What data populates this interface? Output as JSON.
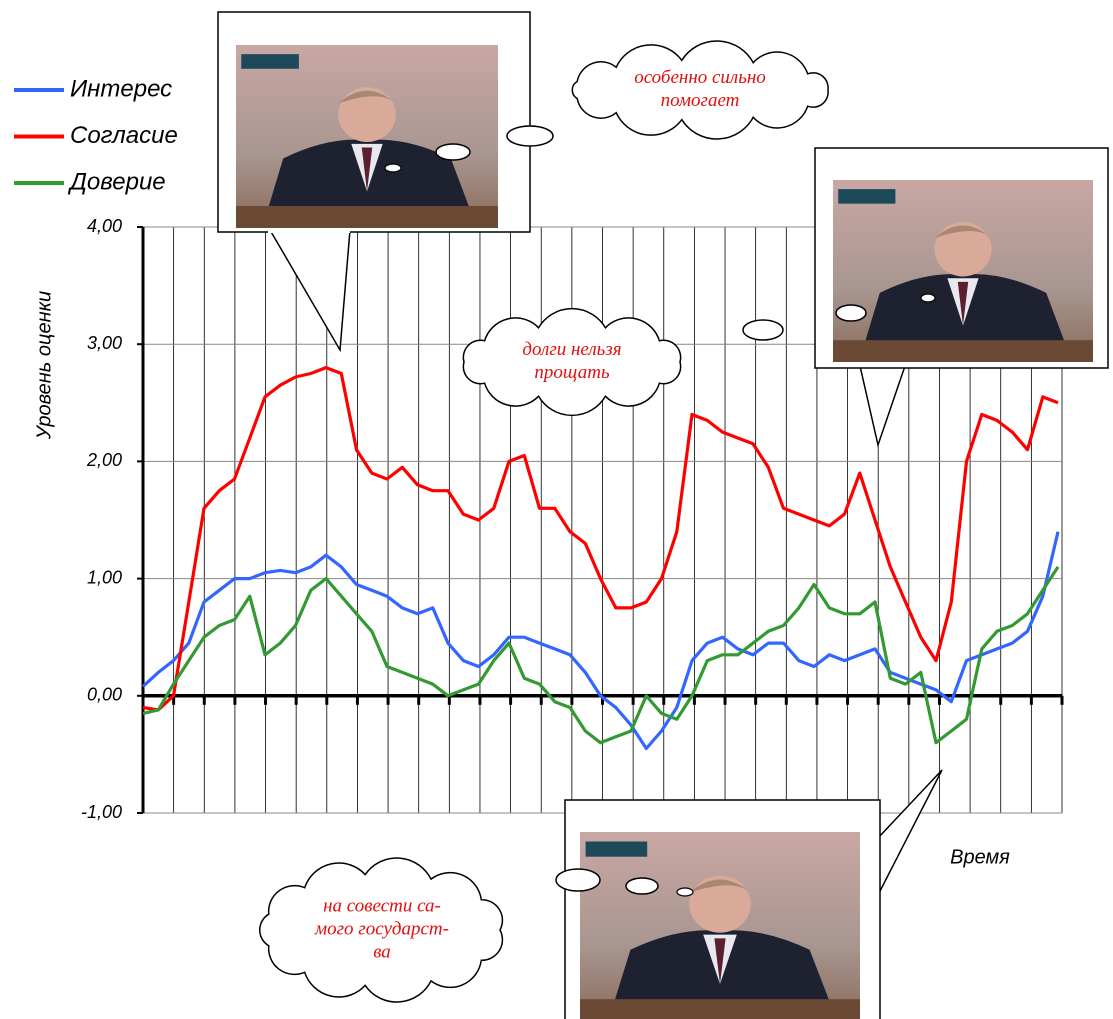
{
  "chart_data": {
    "type": "line",
    "y_label": "Уровень оценки",
    "x_label": "Время",
    "ylim": [
      -1,
      4
    ],
    "yticks": [
      {
        "value": -1,
        "label": "-1,00"
      },
      {
        "value": 0,
        "label": "0,00"
      },
      {
        "value": 1,
        "label": "1,00"
      },
      {
        "value": 2,
        "label": "2,00"
      },
      {
        "value": 3,
        "label": "3,00"
      },
      {
        "value": 4,
        "label": "4,00"
      }
    ],
    "grid": true,
    "x_divisions": 30,
    "legend": "top-left",
    "series": [
      {
        "name": "Интерес",
        "color": "#3366ff",
        "values": [
          0.08,
          0.2,
          0.3,
          0.45,
          0.8,
          0.9,
          1.0,
          1.0,
          1.05,
          1.07,
          1.05,
          1.1,
          1.2,
          1.1,
          0.95,
          0.9,
          0.85,
          0.75,
          0.7,
          0.75,
          0.45,
          0.3,
          0.25,
          0.35,
          0.5,
          0.5,
          0.45,
          0.4,
          0.35,
          0.2,
          0.0,
          -0.1,
          -0.25,
          -0.45,
          -0.3,
          -0.1,
          0.3,
          0.45,
          0.5,
          0.4,
          0.35,
          0.45,
          0.45,
          0.3,
          0.25,
          0.35,
          0.3,
          0.35,
          0.4,
          0.2,
          0.15,
          0.1,
          0.05,
          -0.05,
          0.3,
          0.35,
          0.4,
          0.45,
          0.55,
          0.85,
          1.4
        ]
      },
      {
        "name": "Согласие",
        "color": "#ff0000",
        "values": [
          -0.1,
          -0.12,
          0,
          0.8,
          1.6,
          1.75,
          1.85,
          2.2,
          2.55,
          2.65,
          2.72,
          2.75,
          2.8,
          2.75,
          2.1,
          1.9,
          1.85,
          1.95,
          1.8,
          1.75,
          1.75,
          1.55,
          1.5,
          1.6,
          2.0,
          2.05,
          1.6,
          1.6,
          1.4,
          1.3,
          1.0,
          0.75,
          0.75,
          0.8,
          1.0,
          1.4,
          2.4,
          2.35,
          2.25,
          2.2,
          2.15,
          1.95,
          1.6,
          1.55,
          1.5,
          1.45,
          1.55,
          1.9,
          1.5,
          1.1,
          0.8,
          0.5,
          0.3,
          0.8,
          2.0,
          2.4,
          2.35,
          2.25,
          2.1,
          2.55,
          2.5
        ]
      },
      {
        "name": "Доверие",
        "color": "#339933",
        "values": [
          -0.15,
          -0.12,
          0.1,
          0.3,
          0.5,
          0.6,
          0.65,
          0.85,
          0.35,
          0.45,
          0.6,
          0.9,
          1.0,
          0.85,
          0.7,
          0.55,
          0.25,
          0.2,
          0.15,
          0.1,
          0.0,
          0.05,
          0.1,
          0.3,
          0.45,
          0.15,
          0.1,
          -0.05,
          -0.1,
          -0.3,
          -0.4,
          -0.35,
          -0.3,
          0.0,
          -0.15,
          -0.2,
          0.0,
          0.3,
          0.35,
          0.35,
          0.45,
          0.55,
          0.6,
          0.75,
          0.95,
          0.75,
          0.7,
          0.7,
          0.8,
          0.15,
          0.1,
          0.2,
          -0.4,
          -0.3,
          -0.2,
          0.4,
          0.55,
          0.6,
          0.7,
          0.9,
          1.1
        ]
      }
    ],
    "annotations": [
      {
        "lines": [
          "особенно сильно",
          "помогает"
        ]
      },
      {
        "lines": [
          "долги нельзя",
          "прощать"
        ]
      },
      {
        "lines": [
          "на совести са-",
          "мого государст-",
          "ва"
        ]
      }
    ]
  }
}
